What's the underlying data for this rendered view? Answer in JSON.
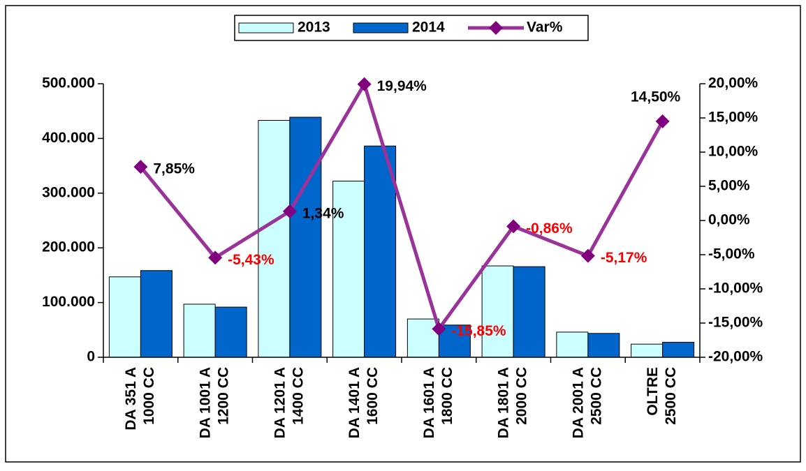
{
  "chart_data": {
    "type": "bar-line",
    "categories": [
      [
        "DA 351 A",
        "1000 CC"
      ],
      [
        "DA 1001 A",
        "1200 CC"
      ],
      [
        "DA 1201 A",
        "1400 CC"
      ],
      [
        "DA 1401 A",
        "1600 CC"
      ],
      [
        "DA 1601 A",
        "1800 CC"
      ],
      [
        "DA 1801 A",
        "2000 CC"
      ],
      [
        "DA 2001 A",
        "2500 CC"
      ],
      [
        "OLTRE",
        "2500 CC"
      ]
    ],
    "series": [
      {
        "name": "2013",
        "color": "#ccffff",
        "values": [
          147000,
          97000,
          433000,
          322000,
          70000,
          167000,
          46000,
          24000
        ]
      },
      {
        "name": "2014",
        "color": "#0066cc",
        "values": [
          158500,
          91700,
          438800,
          386200,
          58900,
          165600,
          43600,
          27500
        ]
      },
      {
        "name": "Var%",
        "color": "#993399",
        "marker_color": "#800080",
        "axis": "y2",
        "values": [
          7.85,
          -5.43,
          1.34,
          19.94,
          -15.85,
          -0.86,
          -5.17,
          14.5
        ],
        "value_labels": [
          "7,85%",
          "-5,43%",
          "1,34%",
          "19,94%",
          "-15,85%",
          "-0,86%",
          "-5,17%",
          "14,50%"
        ]
      }
    ],
    "label_color": "#000000",
    "negative_label_color": "#ff0000",
    "ylim": [
      0,
      500000
    ],
    "yticks": [
      {
        "value": 0,
        "label": "0"
      },
      {
        "value": 100000,
        "label": "100.000"
      },
      {
        "value": 200000,
        "label": "200.000"
      },
      {
        "value": 300000,
        "label": "300.000"
      },
      {
        "value": 400000,
        "label": "400.000"
      },
      {
        "value": 500000,
        "label": "500.000"
      }
    ],
    "y2lim": [
      -20,
      20
    ],
    "y2ticks": [
      {
        "value": -20,
        "label": "-20,00%"
      },
      {
        "value": -15,
        "label": "-15,00%"
      },
      {
        "value": -10,
        "label": "-10,00%"
      },
      {
        "value": -5,
        "label": "-5,00%"
      },
      {
        "value": 0,
        "label": "0,00%"
      },
      {
        "value": 5,
        "label": "5,00%"
      },
      {
        "value": 10,
        "label": "10,00%"
      },
      {
        "value": 15,
        "label": "15,00%"
      },
      {
        "value": 20,
        "label": "20,00%"
      }
    ],
    "legend": "top"
  }
}
